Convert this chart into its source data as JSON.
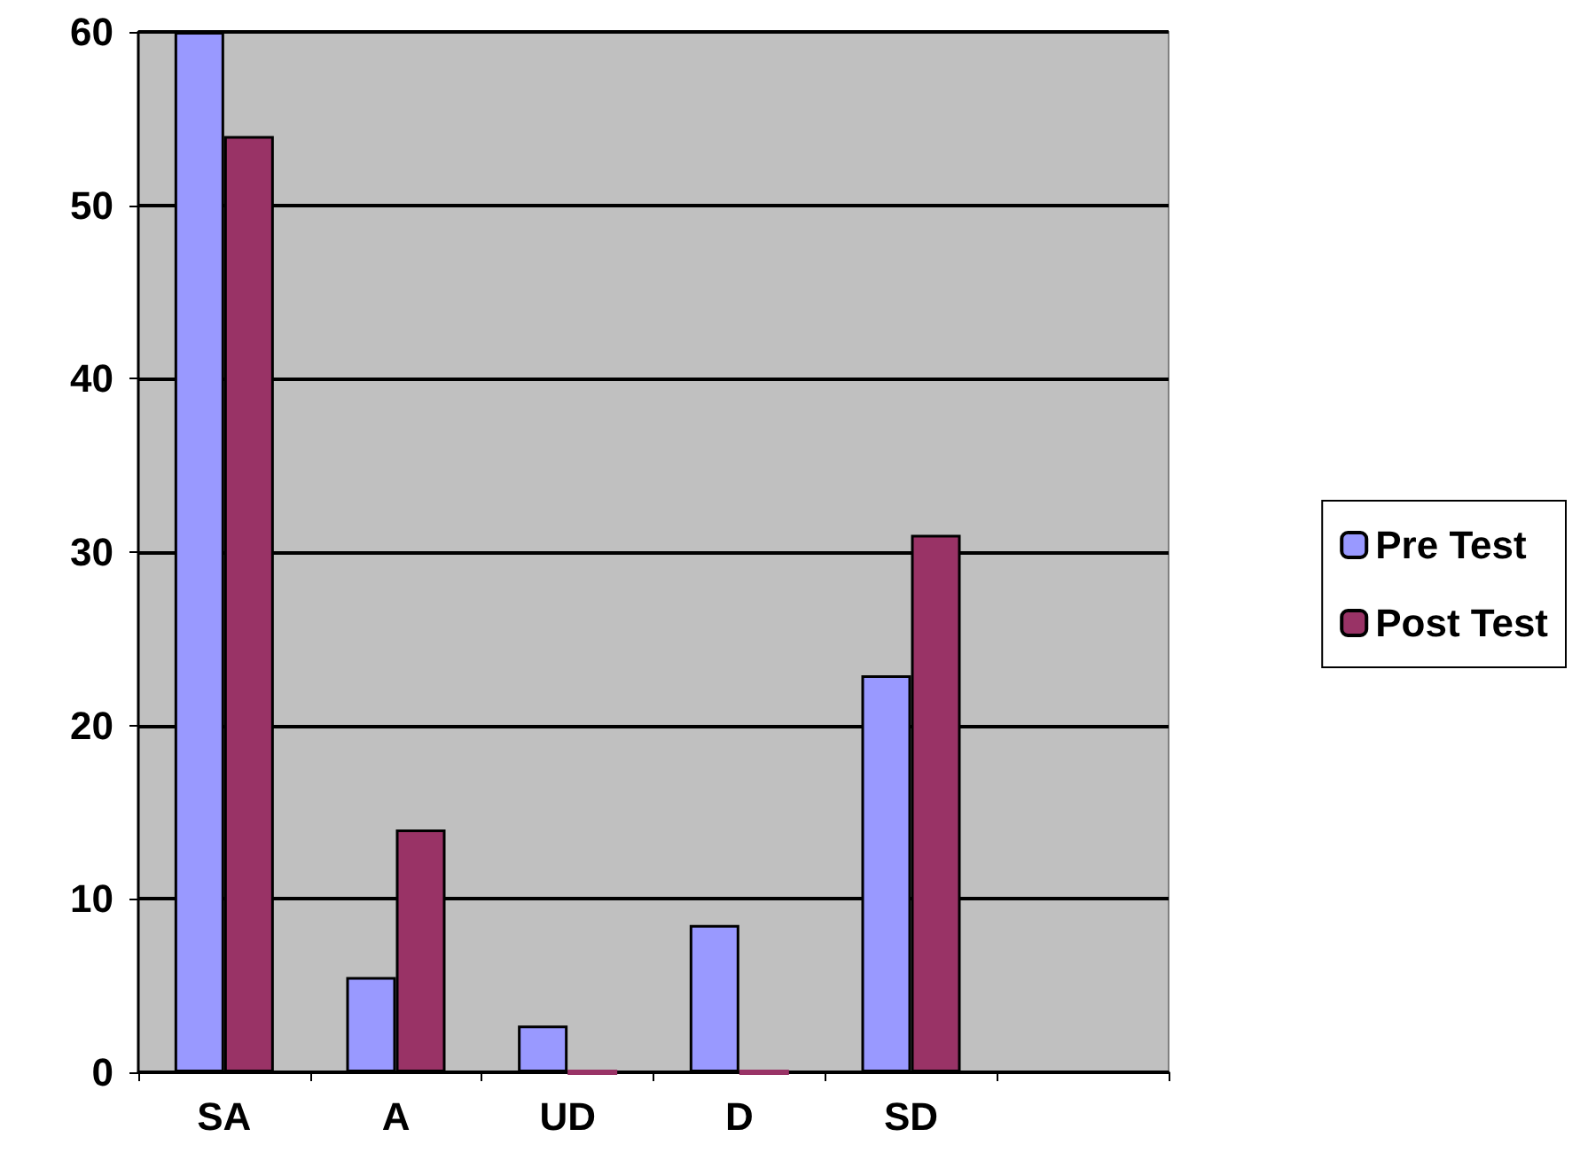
{
  "chart_data": {
    "type": "bar",
    "categories": [
      "SA",
      "A",
      "UD",
      "D",
      "SD",
      null
    ],
    "series": [
      {
        "name": "Pre Test",
        "color": "#9999ff",
        "values": [
          60,
          5.5,
          2.7,
          8.5,
          22.9,
          null
        ]
      },
      {
        "name": "Post Test",
        "color": "#993366",
        "values": [
          54,
          14,
          0,
          0,
          31,
          null
        ]
      }
    ],
    "ylim": [
      0,
      60
    ],
    "yticks": [
      0,
      10,
      20,
      30,
      40,
      50,
      60
    ],
    "grid": "y",
    "legend": "right"
  }
}
